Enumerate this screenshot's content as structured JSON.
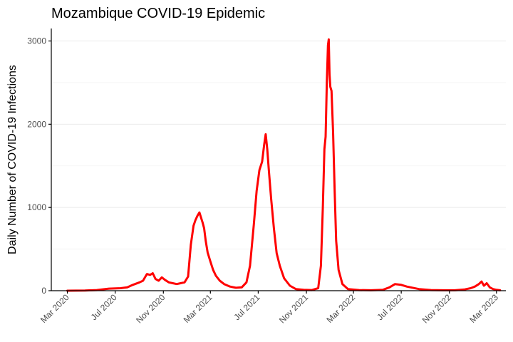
{
  "chart_data": {
    "type": "line",
    "title": "Mozambique COVID-19 Epidemic",
    "xlabel": "",
    "ylabel": "Daily Number of COVID-19 Infections",
    "x_tick_labels": [
      "Mar 2020",
      "Jul 2020",
      "Nov 2020",
      "Mar 2021",
      "Jul 2021",
      "Nov 2021",
      "Mar 2022",
      "Jul 2022",
      "Nov 2022",
      "Mar 2023"
    ],
    "x_tick_dates": [
      "2020-03-01",
      "2020-07-01",
      "2020-11-01",
      "2021-03-01",
      "2021-07-01",
      "2021-11-01",
      "2022-03-01",
      "2022-07-01",
      "2022-11-01",
      "2023-03-01"
    ],
    "y_ticks": [
      0,
      1000,
      2000,
      3000
    ],
    "ylim": [
      0,
      3150
    ],
    "xlim": [
      "2020-01-20",
      "2023-03-25"
    ],
    "grid": "horizontal",
    "color": "#ff0000",
    "series": [
      {
        "points": [
          [
            "2020-03-01",
            0
          ],
          [
            "2020-04-15",
            2
          ],
          [
            "2020-05-15",
            8
          ],
          [
            "2020-06-15",
            25
          ],
          [
            "2020-07-15",
            30
          ],
          [
            "2020-08-01",
            40
          ],
          [
            "2020-08-15",
            70
          ],
          [
            "2020-09-01",
            100
          ],
          [
            "2020-09-10",
            120
          ],
          [
            "2020-09-20",
            200
          ],
          [
            "2020-09-28",
            190
          ],
          [
            "2020-10-05",
            210
          ],
          [
            "2020-10-12",
            140
          ],
          [
            "2020-10-20",
            120
          ],
          [
            "2020-10-28",
            160
          ],
          [
            "2020-11-05",
            130
          ],
          [
            "2020-11-15",
            100
          ],
          [
            "2020-11-25",
            90
          ],
          [
            "2020-12-05",
            80
          ],
          [
            "2020-12-15",
            90
          ],
          [
            "2020-12-25",
            100
          ],
          [
            "2021-01-03",
            170
          ],
          [
            "2021-01-10",
            550
          ],
          [
            "2021-01-17",
            780
          ],
          [
            "2021-01-22",
            850
          ],
          [
            "2021-01-27",
            900
          ],
          [
            "2021-02-01",
            940
          ],
          [
            "2021-02-05",
            880
          ],
          [
            "2021-02-09",
            820
          ],
          [
            "2021-02-13",
            750
          ],
          [
            "2021-02-17",
            600
          ],
          [
            "2021-02-22",
            460
          ],
          [
            "2021-03-01",
            350
          ],
          [
            "2021-03-08",
            250
          ],
          [
            "2021-03-15",
            180
          ],
          [
            "2021-03-25",
            120
          ],
          [
            "2021-04-05",
            80
          ],
          [
            "2021-04-20",
            50
          ],
          [
            "2021-05-05",
            35
          ],
          [
            "2021-05-20",
            40
          ],
          [
            "2021-06-01",
            100
          ],
          [
            "2021-06-10",
            300
          ],
          [
            "2021-06-20",
            800
          ],
          [
            "2021-06-27",
            1200
          ],
          [
            "2021-07-04",
            1450
          ],
          [
            "2021-07-11",
            1550
          ],
          [
            "2021-07-16",
            1750
          ],
          [
            "2021-07-20",
            1880
          ],
          [
            "2021-07-24",
            1700
          ],
          [
            "2021-07-28",
            1450
          ],
          [
            "2021-08-03",
            1100
          ],
          [
            "2021-08-10",
            750
          ],
          [
            "2021-08-17",
            450
          ],
          [
            "2021-08-25",
            300
          ],
          [
            "2021-09-05",
            150
          ],
          [
            "2021-09-20",
            60
          ],
          [
            "2021-10-05",
            20
          ],
          [
            "2021-10-25",
            10
          ],
          [
            "2021-11-15",
            8
          ],
          [
            "2021-12-01",
            30
          ],
          [
            "2021-12-08",
            300
          ],
          [
            "2021-12-13",
            1000
          ],
          [
            "2021-12-17",
            1700
          ],
          [
            "2021-12-20",
            1850
          ],
          [
            "2021-12-23",
            2500
          ],
          [
            "2021-12-26",
            2950
          ],
          [
            "2021-12-28",
            3020
          ],
          [
            "2021-12-30",
            2600
          ],
          [
            "2022-01-01",
            2450
          ],
          [
            "2022-01-04",
            2400
          ],
          [
            "2022-01-08",
            1900
          ],
          [
            "2022-01-12",
            1200
          ],
          [
            "2022-01-16",
            600
          ],
          [
            "2022-01-22",
            250
          ],
          [
            "2022-02-01",
            80
          ],
          [
            "2022-02-15",
            20
          ],
          [
            "2022-03-15",
            8
          ],
          [
            "2022-04-15",
            5
          ],
          [
            "2022-05-15",
            10
          ],
          [
            "2022-06-01",
            40
          ],
          [
            "2022-06-15",
            80
          ],
          [
            "2022-07-01",
            70
          ],
          [
            "2022-07-15",
            50
          ],
          [
            "2022-08-15",
            20
          ],
          [
            "2022-09-15",
            8
          ],
          [
            "2022-10-15",
            5
          ],
          [
            "2022-11-15",
            5
          ],
          [
            "2022-12-10",
            15
          ],
          [
            "2022-12-25",
            30
          ],
          [
            "2023-01-05",
            50
          ],
          [
            "2023-01-15",
            80
          ],
          [
            "2023-01-22",
            110
          ],
          [
            "2023-01-28",
            60
          ],
          [
            "2023-02-04",
            90
          ],
          [
            "2023-02-12",
            40
          ],
          [
            "2023-02-20",
            20
          ],
          [
            "2023-03-01",
            10
          ],
          [
            "2023-03-10",
            5
          ]
        ]
      }
    ]
  }
}
